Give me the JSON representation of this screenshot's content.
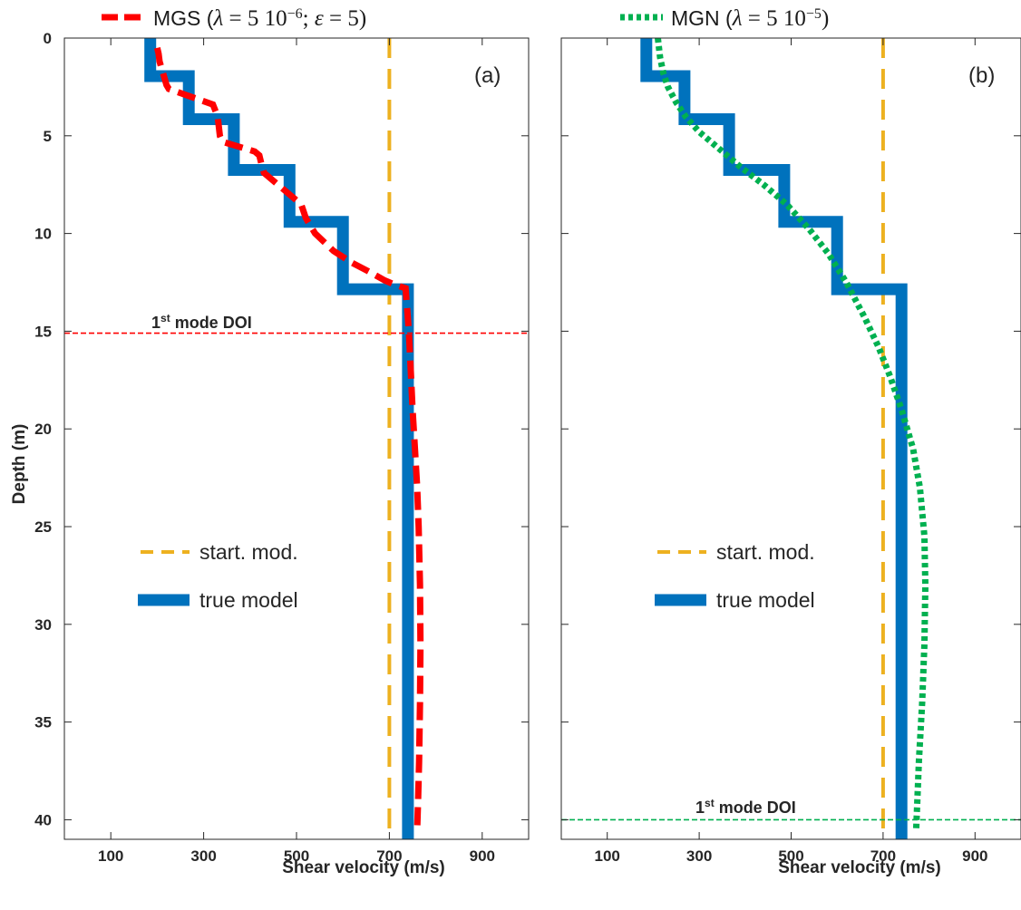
{
  "chart_data": [
    {
      "type": "line",
      "panel_label": "(a)",
      "xlabel": "Shear velocity (m/s)",
      "ylabel": "Depth (m)",
      "xlim": [
        0,
        1000
      ],
      "ylim": [
        0,
        41
      ],
      "y_reversed": true,
      "xticks": [
        100,
        300,
        500,
        700,
        900
      ],
      "yticks": [
        0,
        5,
        10,
        15,
        20,
        25,
        30,
        35,
        40
      ],
      "grid": false,
      "series": [
        {
          "key": "true",
          "name": "true model",
          "color": "#0072BD",
          "style": "solid",
          "x": [
            185,
            185,
            268,
            268,
            365,
            365,
            485,
            485,
            600,
            600,
            740,
            740
          ],
          "y": [
            0,
            1.95,
            1.95,
            4.15,
            4.15,
            6.75,
            6.75,
            9.4,
            9.4,
            12.85,
            12.85,
            41
          ]
        },
        {
          "key": "start",
          "name": "start. mod.",
          "color": "#EDB120",
          "style": "dashed",
          "x": [
            700,
            700
          ],
          "y": [
            0,
            41
          ]
        },
        {
          "key": "inv",
          "name": "MGS (λ = 5 10⁻⁶; ε = 5)",
          "color": "#FF0000",
          "style": "dashed",
          "x": [
            200,
            203,
            205,
            210,
            215,
            220,
            225,
            320,
            330,
            335,
            340,
            410,
            420,
            425,
            430,
            510,
            520,
            540,
            580,
            620,
            660,
            690,
            710,
            735,
            742,
            746,
            750,
            755,
            760,
            763,
            766,
            767,
            766,
            764,
            762,
            760
          ],
          "y": [
            0.5,
            0.8,
            1.2,
            1.6,
            2.0,
            2.4,
            2.6,
            3.4,
            4.0,
            5.0,
            5.3,
            5.8,
            6.0,
            6.5,
            6.9,
            8.5,
            9.2,
            10.0,
            10.9,
            11.5,
            12.0,
            12.4,
            12.6,
            12.8,
            15,
            17,
            19,
            21,
            23,
            25,
            28,
            31,
            34,
            37,
            39,
            40.5
          ]
        }
      ],
      "doi": {
        "depth": 15.1,
        "label_base": "1",
        "label_sup": "st",
        "label_rest": " mode DOI",
        "color": "#FF0000"
      },
      "legend": [
        "start. mod.",
        "true model"
      ]
    },
    {
      "type": "line",
      "panel_label": "(b)",
      "xlabel": "Shear velocity (m/s)",
      "xlim": [
        0,
        1000
      ],
      "ylim": [
        0,
        41
      ],
      "y_reversed": true,
      "xticks": [
        100,
        300,
        500,
        700,
        900
      ],
      "grid": false,
      "series": [
        {
          "key": "true",
          "name": "true model",
          "color": "#0072BD",
          "style": "solid",
          "x": [
            185,
            185,
            268,
            268,
            365,
            365,
            485,
            485,
            600,
            600,
            740,
            740
          ],
          "y": [
            0,
            1.95,
            1.95,
            4.15,
            4.15,
            6.75,
            6.75,
            9.4,
            9.4,
            12.85,
            12.85,
            41
          ]
        },
        {
          "key": "start",
          "name": "start. mod.",
          "color": "#EDB120",
          "style": "dashed",
          "x": [
            700,
            700
          ],
          "y": [
            0,
            41
          ]
        },
        {
          "key": "inv",
          "name": "MGN (λ = 5 10⁻⁵)",
          "color": "#00B050",
          "style": "dotted",
          "x": [
            210,
            215,
            222,
            232,
            250,
            270,
            300,
            340,
            390,
            440,
            490,
            540,
            580,
            620,
            660,
            690,
            715,
            740,
            765,
            780,
            790,
            792,
            790,
            785,
            778,
            772
          ],
          "y": [
            0,
            1.0,
            1.8,
            2.5,
            3.3,
            4.0,
            4.8,
            5.6,
            6.6,
            7.5,
            8.5,
            9.8,
            11.0,
            12.5,
            14.3,
            15.8,
            17.3,
            19.0,
            21.0,
            23.0,
            25.5,
            28.0,
            31.0,
            34.0,
            37.0,
            40.5
          ]
        }
      ],
      "doi": {
        "depth": 40.0,
        "label_base": "1",
        "label_sup": "st",
        "label_rest": " mode DOI",
        "color": "#00B050"
      },
      "legend": [
        "start. mod.",
        "true model"
      ]
    }
  ],
  "top_legend": [
    {
      "panel": 0,
      "prefix": "MGS (",
      "lambda_sym": "λ",
      "eq1": " = 5 10",
      "exp": "−6",
      "sep": "; ",
      "eps_sym": "ε",
      "eq2": " = 5)"
    },
    {
      "panel": 1,
      "prefix": "MGN (",
      "lambda_sym": "λ",
      "eq1": " = 5 10",
      "exp": "−5",
      "sep": "",
      "eps_sym": "",
      "eq2": ")"
    }
  ]
}
